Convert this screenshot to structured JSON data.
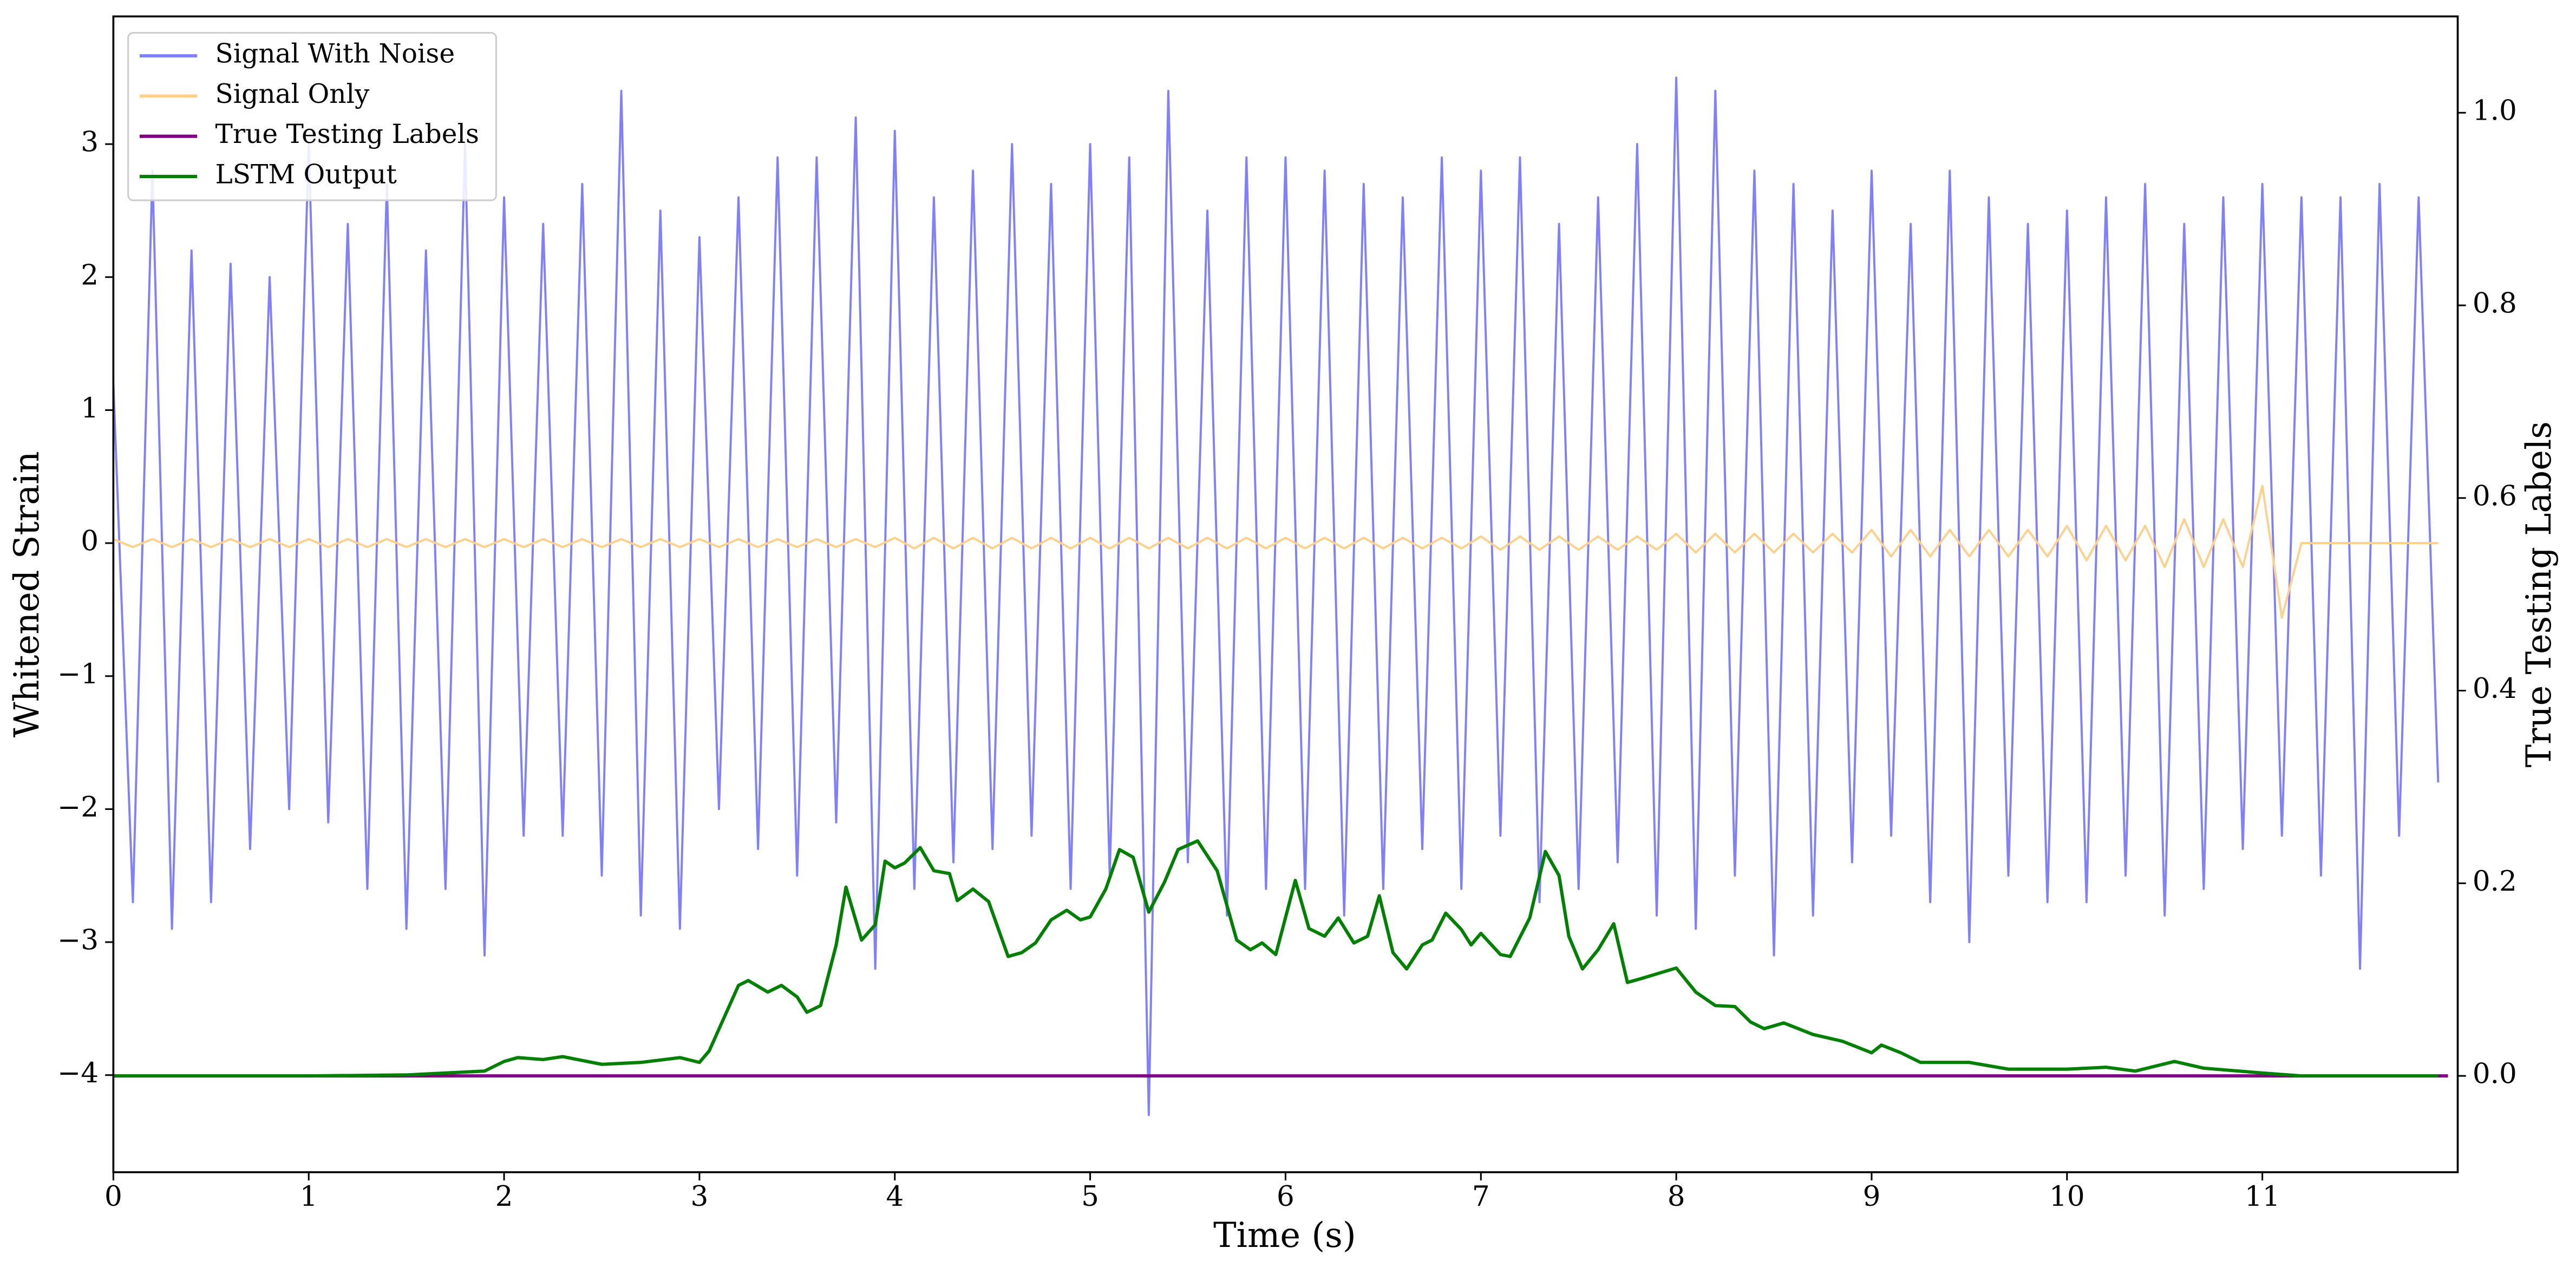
{
  "chart_data": {
    "type": "line",
    "xlabel": "Time (s)",
    "ylabel": "Whitened Strain",
    "y2label": "True Testing Labels",
    "xlim": [
      0,
      12
    ],
    "ylim": [
      -4.73,
      3.96
    ],
    "y2lim": [
      -0.1,
      1.1
    ],
    "xticks": [
      0,
      1,
      2,
      3,
      4,
      5,
      6,
      7,
      8,
      9,
      10,
      11
    ],
    "yticks": [
      {
        "value": -4,
        "label": "−4"
      },
      {
        "value": -3,
        "label": "−3"
      },
      {
        "value": -2,
        "label": "−2"
      },
      {
        "value": -1,
        "label": "−1"
      },
      0,
      1,
      2,
      3
    ],
    "y2ticks": [
      {
        "value": 0,
        "label": "0.0"
      },
      0.2,
      0.4,
      0.6,
      0.8,
      {
        "value": 1,
        "label": "1.0"
      }
    ],
    "legend": "upper left",
    "x": [
      0,
      0.1,
      0.2,
      0.3,
      0.4,
      0.5,
      0.6,
      0.7,
      0.8,
      0.9,
      1,
      1.1,
      1.2,
      1.3,
      1.4,
      1.5,
      1.6,
      1.7,
      1.8,
      1.9,
      2,
      2.1,
      2.2,
      2.3,
      2.4,
      2.5,
      2.6,
      2.7,
      2.8,
      2.9,
      3,
      3.1,
      3.2,
      3.3,
      3.4,
      3.5,
      3.6,
      3.7,
      3.8,
      3.9,
      4,
      4.1,
      4.2,
      4.3,
      4.4,
      4.5,
      4.6,
      4.7,
      4.8,
      4.9,
      5,
      5.1,
      5.2,
      5.3,
      5.4,
      5.5,
      5.6,
      5.7,
      5.8,
      5.9,
      6,
      6.1,
      6.2,
      6.3,
      6.4,
      6.5,
      6.6,
      6.7,
      6.8,
      6.9,
      7,
      7.1,
      7.2,
      7.3,
      7.4,
      7.5,
      7.6,
      7.7,
      7.8,
      7.9,
      8,
      8.1,
      8.2,
      8.3,
      8.4,
      8.5,
      8.6,
      8.7,
      8.8,
      8.9,
      9,
      9.1,
      9.2,
      9.3,
      9.4,
      9.5,
      9.6,
      9.7,
      9.8,
      9.9,
      10,
      10.1,
      10.2,
      10.3,
      10.4,
      10.5,
      10.6,
      10.7,
      10.8,
      10.9,
      11,
      11.1,
      11.2,
      11.3,
      11.4,
      11.5,
      11.6,
      11.7,
      11.8,
      11.9
    ],
    "series": [
      {
        "name": "Signal With Noise",
        "color": "#8080ff",
        "values": [
          1.2,
          -2.7,
          2.8,
          -2.9,
          2.2,
          -2.7,
          2.1,
          -2.3,
          2.0,
          -2.0,
          3.0,
          -2.1,
          2.4,
          -2.6,
          2.7,
          -2.9,
          2.2,
          -2.6,
          3.0,
          -3.1,
          2.6,
          -2.2,
          2.4,
          -2.2,
          2.7,
          -2.5,
          3.4,
          -2.8,
          2.5,
          -2.9,
          2.3,
          -2.0,
          2.6,
          -2.3,
          2.9,
          -2.5,
          2.9,
          -2.1,
          3.2,
          -3.2,
          3.1,
          -2.6,
          2.6,
          -2.4,
          2.8,
          -2.3,
          3.0,
          -2.2,
          2.7,
          -2.6,
          3.0,
          -2.5,
          2.9,
          -4.3,
          3.4,
          -2.4,
          2.5,
          -2.8,
          2.9,
          -2.6,
          2.9,
          -2.6,
          2.8,
          -2.8,
          2.7,
          -2.6,
          2.6,
          -2.3,
          2.9,
          -2.6,
          2.8,
          -2.2,
          2.9,
          -2.7,
          2.4,
          -2.6,
          2.6,
          -2.4,
          3.0,
          -2.8,
          3.5,
          -2.9,
          3.4,
          -2.5,
          2.8,
          -3.1,
          2.7,
          -2.8,
          2.5,
          -2.4,
          2.8,
          -2.2,
          2.4,
          -2.7,
          2.8,
          -3.0,
          2.6,
          -2.5,
          2.4,
          -2.7,
          2.5,
          -2.7,
          2.6,
          -2.5,
          2.7,
          -2.8,
          2.4,
          -2.6,
          2.6,
          -2.3,
          2.7,
          -2.2,
          2.6,
          -2.5,
          2.6,
          -3.2,
          2.7,
          -2.2,
          2.6,
          -1.8
        ]
      },
      {
        "name": "Signal Only",
        "color": "#ffd08a",
        "values": [
          0.03,
          -0.03,
          0.03,
          -0.03,
          0.03,
          -0.03,
          0.03,
          -0.03,
          0.03,
          -0.03,
          0.03,
          -0.03,
          0.03,
          -0.03,
          0.03,
          -0.03,
          0.03,
          -0.03,
          0.03,
          -0.03,
          0.03,
          -0.03,
          0.03,
          -0.03,
          0.03,
          -0.03,
          0.03,
          -0.03,
          0.03,
          -0.03,
          0.03,
          -0.03,
          0.03,
          -0.03,
          0.03,
          -0.03,
          0.03,
          -0.03,
          0.03,
          -0.03,
          0.04,
          -0.04,
          0.04,
          -0.04,
          0.04,
          -0.04,
          0.04,
          -0.04,
          0.04,
          -0.04,
          0.04,
          -0.04,
          0.04,
          -0.04,
          0.04,
          -0.04,
          0.04,
          -0.04,
          0.04,
          -0.04,
          0.04,
          -0.04,
          0.04,
          -0.04,
          0.04,
          -0.04,
          0.04,
          -0.04,
          0.04,
          -0.04,
          0.05,
          -0.05,
          0.05,
          -0.05,
          0.05,
          -0.05,
          0.05,
          -0.05,
          0.05,
          -0.05,
          0.07,
          -0.07,
          0.07,
          -0.07,
          0.07,
          -0.07,
          0.07,
          -0.07,
          0.07,
          -0.07,
          0.1,
          -0.1,
          0.1,
          -0.1,
          0.1,
          -0.1,
          0.1,
          -0.1,
          0.1,
          -0.1,
          0.13,
          -0.13,
          0.13,
          -0.13,
          0.13,
          -0.18,
          0.18,
          -0.18,
          0.18,
          -0.18,
          0.43,
          -0.56,
          0,
          0,
          0,
          0,
          0,
          0,
          0,
          0
        ]
      },
      {
        "name": "True Testing Labels",
        "color": "#800080",
        "axis": "y2",
        "x": [
          0,
          11.95
        ],
        "values": [
          0,
          0
        ]
      },
      {
        "name": "LSTM Output",
        "color": "#008000",
        "axis": "y2",
        "x": [
          0,
          1.0,
          1.5,
          1.9,
          2.0,
          2.07,
          2.2,
          2.3,
          2.5,
          2.7,
          2.9,
          3.0,
          3.05,
          3.2,
          3.25,
          3.35,
          3.42,
          3.5,
          3.55,
          3.62,
          3.7,
          3.75,
          3.83,
          3.9,
          3.95,
          4.0,
          4.05,
          4.13,
          4.2,
          4.28,
          4.32,
          4.4,
          4.48,
          4.58,
          4.65,
          4.72,
          4.8,
          4.88,
          4.95,
          5.0,
          5.08,
          5.15,
          5.22,
          5.3,
          5.38,
          5.45,
          5.55,
          5.65,
          5.75,
          5.82,
          5.88,
          5.95,
          6.05,
          6.12,
          6.2,
          6.27,
          6.35,
          6.42,
          6.48,
          6.55,
          6.62,
          6.7,
          6.75,
          6.82,
          6.9,
          6.95,
          7.0,
          7.1,
          7.15,
          7.25,
          7.33,
          7.4,
          7.45,
          7.52,
          7.6,
          7.68,
          7.75,
          7.82,
          8.0,
          8.1,
          8.2,
          8.3,
          8.38,
          8.45,
          8.55,
          8.7,
          8.85,
          9.0,
          9.05,
          9.15,
          9.25,
          9.5,
          9.7,
          10.0,
          10.2,
          10.35,
          10.55,
          10.7,
          11.0,
          11.2,
          11.9
        ],
        "values": [
          0,
          0,
          0.001,
          0.005,
          0.015,
          0.019,
          0.017,
          0.02,
          0.012,
          0.014,
          0.019,
          0.014,
          0.026,
          0.094,
          0.099,
          0.087,
          0.094,
          0.082,
          0.066,
          0.073,
          0.136,
          0.196,
          0.141,
          0.157,
          0.223,
          0.216,
          0.221,
          0.237,
          0.213,
          0.21,
          0.182,
          0.194,
          0.181,
          0.124,
          0.128,
          0.138,
          0.162,
          0.172,
          0.162,
          0.165,
          0.194,
          0.235,
          0.227,
          0.17,
          0.201,
          0.235,
          0.244,
          0.213,
          0.141,
          0.131,
          0.138,
          0.126,
          0.203,
          0.153,
          0.145,
          0.164,
          0.138,
          0.145,
          0.187,
          0.128,
          0.111,
          0.136,
          0.141,
          0.169,
          0.152,
          0.136,
          0.148,
          0.126,
          0.124,
          0.164,
          0.233,
          0.208,
          0.145,
          0.111,
          0.131,
          0.158,
          0.097,
          0.101,
          0.112,
          0.087,
          0.073,
          0.072,
          0.056,
          0.049,
          0.055,
          0.043,
          0.036,
          0.024,
          0.032,
          0.024,
          0.014,
          0.014,
          0.007,
          0.007,
          0.009,
          0.005,
          0.015,
          0.008,
          0.003,
          0,
          0
        ]
      }
    ]
  }
}
